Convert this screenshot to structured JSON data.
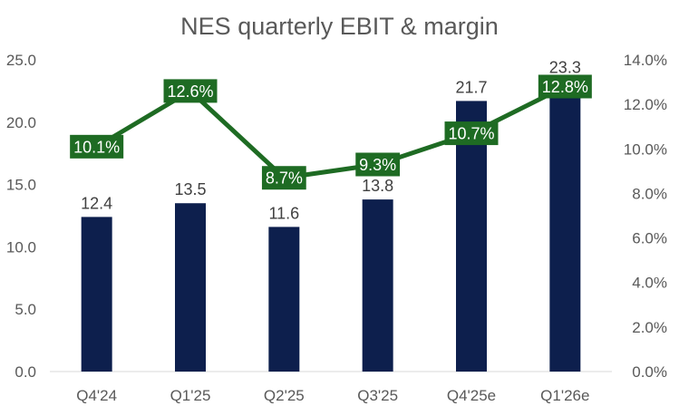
{
  "chart_data": {
    "type": "bar",
    "title": "NES quarterly EBIT & margin",
    "categories": [
      "Q4'24",
      "Q1'25",
      "Q2'25",
      "Q3'25",
      "Q4'25e",
      "Q1'26e"
    ],
    "series": [
      {
        "values": [
          12.4,
          13.5,
          11.6,
          13.8,
          21.7,
          23.3
        ],
        "axis": "left",
        "kind": "bar",
        "color": "#0d1f4d"
      },
      {
        "values": [
          10.1,
          12.6,
          8.7,
          9.3,
          10.7,
          12.8
        ],
        "axis": "right",
        "kind": "line",
        "color": "#1e6b23"
      }
    ],
    "bar_labels": [
      "12.4",
      "13.5",
      "11.6",
      "13.8",
      "21.7",
      "23.3"
    ],
    "line_labels": [
      "10.1%",
      "12.6%",
      "8.7%",
      "9.3%",
      "10.7%",
      "12.8%"
    ],
    "ylim": [
      0,
      25
    ],
    "y2lim": [
      0,
      14
    ],
    "y_ticks": [
      "0.0",
      "5.0",
      "10.0",
      "15.0",
      "20.0",
      "25.0"
    ],
    "y2_ticks": [
      "0.0%",
      "2.0%",
      "4.0%",
      "6.0%",
      "8.0%",
      "10.0%",
      "12.0%",
      "14.0%"
    ],
    "grid": false,
    "legend": "none"
  }
}
